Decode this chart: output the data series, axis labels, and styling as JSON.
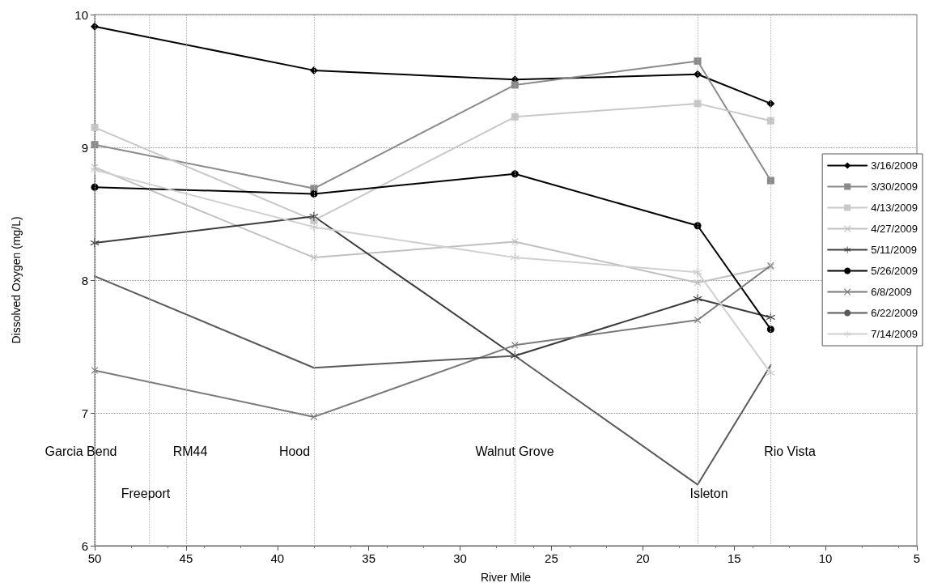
{
  "chart_data": {
    "type": "line",
    "xlabel": "River Mile",
    "ylabel": "Dissolved Oxygen (mg/L)",
    "x": [
      50,
      38,
      27,
      17,
      13
    ],
    "series": [
      {
        "name": "3/16/2009",
        "color": "#000000",
        "marker": "diamond",
        "values": [
          9.91,
          9.58,
          9.51,
          9.55,
          9.33
        ]
      },
      {
        "name": "3/30/2009",
        "color": "#8a8a8a",
        "marker": "square",
        "values": [
          9.02,
          8.69,
          9.47,
          9.65,
          8.75
        ]
      },
      {
        "name": "4/13/2009",
        "color": "#c8c8c8",
        "marker": "square",
        "values": [
          9.15,
          8.45,
          9.23,
          9.33,
          9.2
        ]
      },
      {
        "name": "4/27/2009",
        "color": "#c0c0c0",
        "marker": "cross",
        "values": [
          8.85,
          8.17,
          8.29,
          7.98,
          8.1
        ]
      },
      {
        "name": "5/11/2009",
        "color": "#3c3c3c",
        "marker": "star",
        "values": [
          8.28,
          8.48,
          7.43,
          7.86,
          7.72
        ]
      },
      {
        "name": "5/26/2009",
        "color": "#000000",
        "marker": "circle",
        "values": [
          8.7,
          8.65,
          8.8,
          8.41,
          7.63
        ]
      },
      {
        "name": "6/8/2009",
        "color": "#7a7a7a",
        "marker": "cross",
        "values": [
          7.32,
          6.97,
          7.51,
          7.7,
          8.11
        ]
      },
      {
        "name": "6/22/2009",
        "color": "#5a5a5a",
        "marker": "none",
        "values": [
          8.03,
          7.34,
          7.43,
          6.46,
          7.36
        ]
      },
      {
        "name": "7/14/2009",
        "color": "#d0d0d0",
        "marker": "star",
        "values": [
          8.83,
          8.4,
          8.17,
          8.06,
          7.3
        ]
      }
    ],
    "xlim": [
      50,
      5
    ],
    "xticks": [
      50,
      45,
      40,
      35,
      30,
      25,
      20,
      15,
      10,
      5
    ],
    "ylim": [
      6,
      10
    ],
    "yticks": [
      6,
      7,
      8,
      9,
      10
    ],
    "grid": "y",
    "legend": "right",
    "ref_lines": [
      {
        "axis": "x",
        "value": 50,
        "color": "#b0b0b0",
        "line_style": "dotted"
      },
      {
        "axis": "x",
        "value": 47,
        "color": "#b0b0b0",
        "line_style": "dotted"
      },
      {
        "axis": "x",
        "value": 45,
        "color": "#b0b0b0",
        "line_style": "dotted"
      },
      {
        "axis": "x",
        "value": 38,
        "color": "#b0b0b0",
        "line_style": "dotted"
      },
      {
        "axis": "x",
        "value": 27,
        "color": "#b0b0b0",
        "line_style": "dotted"
      },
      {
        "axis": "x",
        "value": 17,
        "color": "#b0b0b0",
        "line_style": "dotted"
      },
      {
        "axis": "x",
        "value": 13,
        "color": "#b0b0b0",
        "line_style": "dotted"
      }
    ],
    "annotations": [
      "Garcia Bend",
      "RM44",
      "Hood",
      "Walnut Grove",
      "Rio Vista",
      "Freeport",
      "Isleton"
    ]
  }
}
